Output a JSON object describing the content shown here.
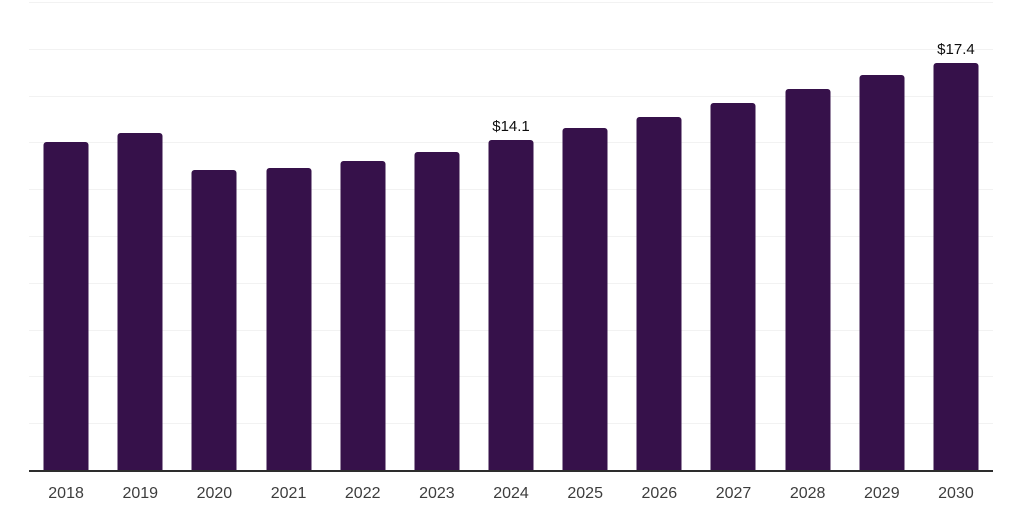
{
  "chart_data": {
    "type": "bar",
    "title": "",
    "xlabel": "",
    "ylabel": "",
    "categories": [
      "2018",
      "2019",
      "2020",
      "2021",
      "2022",
      "2023",
      "2024",
      "2025",
      "2026",
      "2027",
      "2028",
      "2029",
      "2030"
    ],
    "values": [
      14.0,
      14.4,
      12.8,
      12.9,
      13.2,
      13.6,
      14.1,
      14.6,
      15.1,
      15.7,
      16.3,
      16.9,
      17.4
    ],
    "data_labels": [
      {
        "category": "2024",
        "text": "$14.1"
      },
      {
        "category": "2030",
        "text": "$17.4"
      }
    ],
    "ylim": [
      0,
      20
    ],
    "gridline_step": 2,
    "grid": true,
    "legend": false,
    "colors": {
      "bar": "#36114A",
      "grid": "#f2f2f2",
      "axis": "#2d2d2d",
      "tick_label": "#3d3d3d",
      "data_label": "#0d0d0d"
    }
  }
}
